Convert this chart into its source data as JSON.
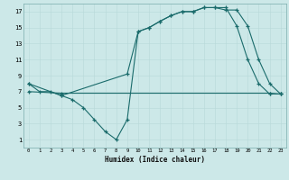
{
  "xlabel": "Humidex (Indice chaleur)",
  "bg_color": "#cce8e8",
  "line_color": "#1a6b6b",
  "xlim": [
    -0.5,
    23.5
  ],
  "ylim": [
    0,
    18
  ],
  "xticks": [
    0,
    1,
    2,
    3,
    4,
    5,
    6,
    7,
    8,
    9,
    10,
    11,
    12,
    13,
    14,
    15,
    16,
    17,
    18,
    19,
    20,
    21,
    22,
    23
  ],
  "yticks": [
    1,
    3,
    5,
    7,
    9,
    11,
    13,
    15,
    17
  ],
  "line1_x": [
    0,
    1,
    2,
    3,
    4,
    5,
    6,
    7,
    8,
    9,
    10,
    11,
    12,
    13,
    14,
    15,
    16,
    17,
    18,
    19,
    20,
    21,
    22,
    23
  ],
  "line1_y": [
    8,
    7,
    7,
    6.5,
    6,
    5,
    3.5,
    2,
    1,
    3.5,
    14.5,
    15,
    15.8,
    16.5,
    17,
    17,
    17.5,
    17.5,
    17.5,
    15.2,
    11,
    8,
    6.7,
    6.7
  ],
  "line2_x": [
    0,
    3,
    9,
    10,
    11,
    12,
    13,
    14,
    15,
    16,
    17,
    18,
    19,
    20,
    21,
    22,
    23
  ],
  "line2_y": [
    8,
    6.5,
    9.2,
    14.5,
    15,
    15.8,
    16.5,
    17,
    17,
    17.5,
    17.5,
    17.2,
    17.2,
    15.2,
    11,
    8,
    6.7
  ],
  "line3_x": [
    0,
    3,
    22,
    23
  ],
  "line3_y": [
    7,
    6.8,
    6.8,
    6.7
  ]
}
